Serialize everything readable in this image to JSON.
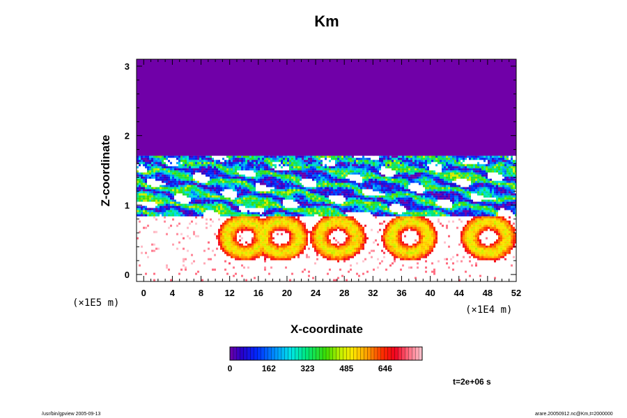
{
  "chart_data": {
    "type": "heatmap",
    "title": "Km",
    "xlabel": "X-coordinate",
    "ylabel": "Z-coordinate",
    "x_scale_note": "(×1E4 m)",
    "y_scale_note": "(×1E5 m)",
    "xlim": [
      -1,
      52
    ],
    "ylim": [
      -0.1,
      3.1
    ],
    "x_ticks": [
      0,
      4,
      8,
      12,
      16,
      20,
      24,
      28,
      32,
      36,
      40,
      44,
      48,
      52
    ],
    "y_ticks": [
      0,
      1,
      2,
      3
    ],
    "colorbar": {
      "min": 0,
      "max": 800,
      "tick_values": [
        0,
        162,
        323,
        485,
        646
      ],
      "tick_labels": [
        "0",
        "162",
        "323",
        "485",
        "646"
      ]
    },
    "time_label": "t=2e+06 s",
    "uniform_top_region": {
      "z_from": 1.72,
      "z_to": 3.1,
      "value": 0
    }
  },
  "footer": {
    "left_text": "/usr/bin/gpview 2005-09-13",
    "right_text": "arare.20050912.nc@Km,t=2000000"
  },
  "colors": {
    "top_region": "#7000a8",
    "frame": "#000000"
  }
}
